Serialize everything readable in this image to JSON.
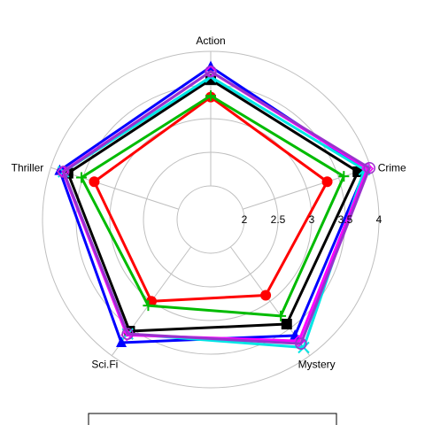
{
  "chart_data": {
    "type": "radar",
    "categories": [
      "Action",
      "Crime",
      "Mystery",
      "Sci.Fi",
      "Thriller"
    ],
    "radial_ticks": [
      "2",
      "2.5",
      "3",
      "3.5",
      "4"
    ],
    "range": [
      1.5,
      4
    ],
    "grid": true,
    "legend": "bottom",
    "series": [
      {
        "color": "#000000",
        "marker": "square",
        "values": [
          3.58,
          3.8,
          3.42,
          3.55,
          3.73
        ]
      },
      {
        "color": "#ff0000",
        "marker": "circle",
        "values": [
          3.32,
          3.32,
          2.89,
          3.0,
          3.32
        ]
      },
      {
        "color": "#00bb00",
        "marker": "plus",
        "values": [
          3.34,
          3.58,
          3.27,
          3.08,
          3.52
        ]
      },
      {
        "color": "#0000ff",
        "marker": "triangle",
        "values": [
          3.77,
          3.92,
          3.63,
          3.76,
          3.86
        ]
      },
      {
        "color": "#00e5e5",
        "marker": "x",
        "values": [
          3.62,
          3.9,
          3.85,
          3.6,
          3.8
        ]
      },
      {
        "color": "#ff00ff",
        "marker": "diamond",
        "values": [
          3.7,
          3.95,
          3.73,
          3.62,
          3.81
        ]
      },
      {
        "color": "#9a32cd",
        "marker": "open-circle",
        "values": [
          3.7,
          3.98,
          3.78,
          3.6,
          3.8
        ]
      }
    ]
  }
}
